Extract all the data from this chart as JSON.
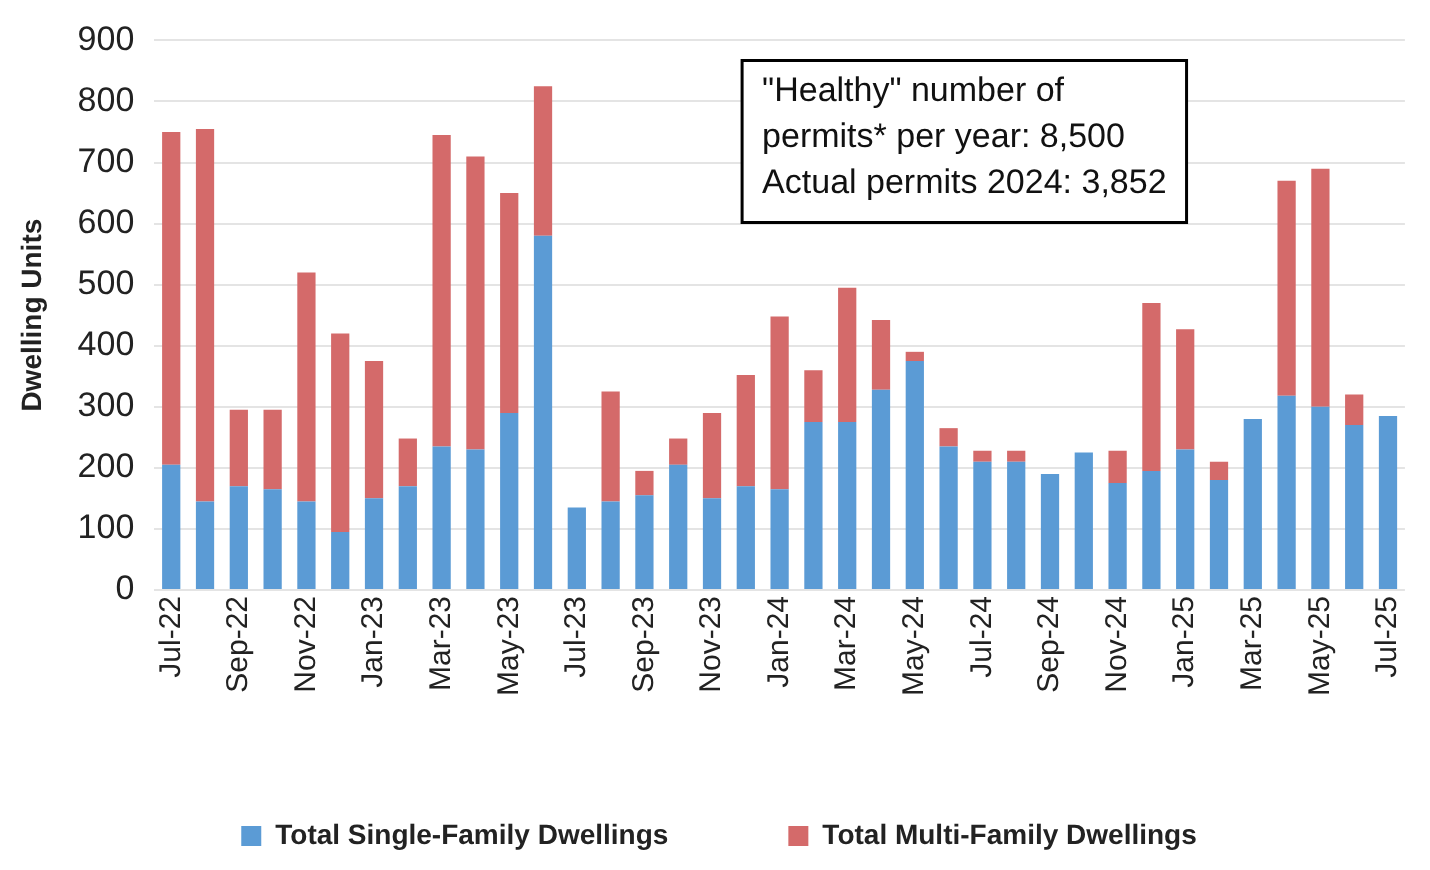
{
  "chart_data": {
    "type": "bar",
    "stacked": true,
    "ylabel": "Dwelling Units",
    "categories": [
      "Jul-22",
      null,
      "Sep-22",
      null,
      "Nov-22",
      null,
      "Jan-23",
      null,
      "Mar-23",
      null,
      "May-23",
      null,
      "Jul-23",
      null,
      "Sep-23",
      null,
      "Nov-23",
      null,
      "Jan-24",
      null,
      "Mar-24",
      null,
      "May-24",
      null,
      "Jul-24",
      null,
      "Sep-24",
      null,
      "Nov-24",
      null,
      "Jan-25",
      null,
      "Mar-25",
      null,
      "May-25",
      null,
      "Jul-25"
    ],
    "series": [
      {
        "name": "Total Single-Family Dwellings",
        "color": "#5b9bd5",
        "values": [
          205,
          145,
          170,
          165,
          145,
          95,
          150,
          170,
          235,
          230,
          290,
          580,
          135,
          145,
          155,
          205,
          150,
          170,
          165,
          275,
          275,
          328,
          375,
          235,
          210,
          210,
          190,
          225,
          175,
          195,
          230,
          180,
          280,
          318,
          300,
          270,
          285
        ]
      },
      {
        "name": "Total Multi-Family Dwellings",
        "color": "#d46a6a",
        "values": [
          545,
          610,
          125,
          130,
          375,
          325,
          225,
          78,
          510,
          480,
          360,
          245,
          0,
          180,
          40,
          43,
          140,
          182,
          283,
          85,
          220,
          114,
          15,
          30,
          18,
          18,
          0,
          0,
          53,
          275,
          197,
          30,
          0,
          352,
          390,
          50,
          0
        ]
      }
    ],
    "ylim": [
      0,
      900
    ],
    "yticks": [
      0,
      100,
      200,
      300,
      400,
      500,
      600,
      700,
      800,
      900
    ],
    "grid": "y",
    "legend": "bottom",
    "annotations": [
      "\"Healthy\" number of\npermits* per year: 8,500\nActual permits 2024: 3,852"
    ]
  }
}
